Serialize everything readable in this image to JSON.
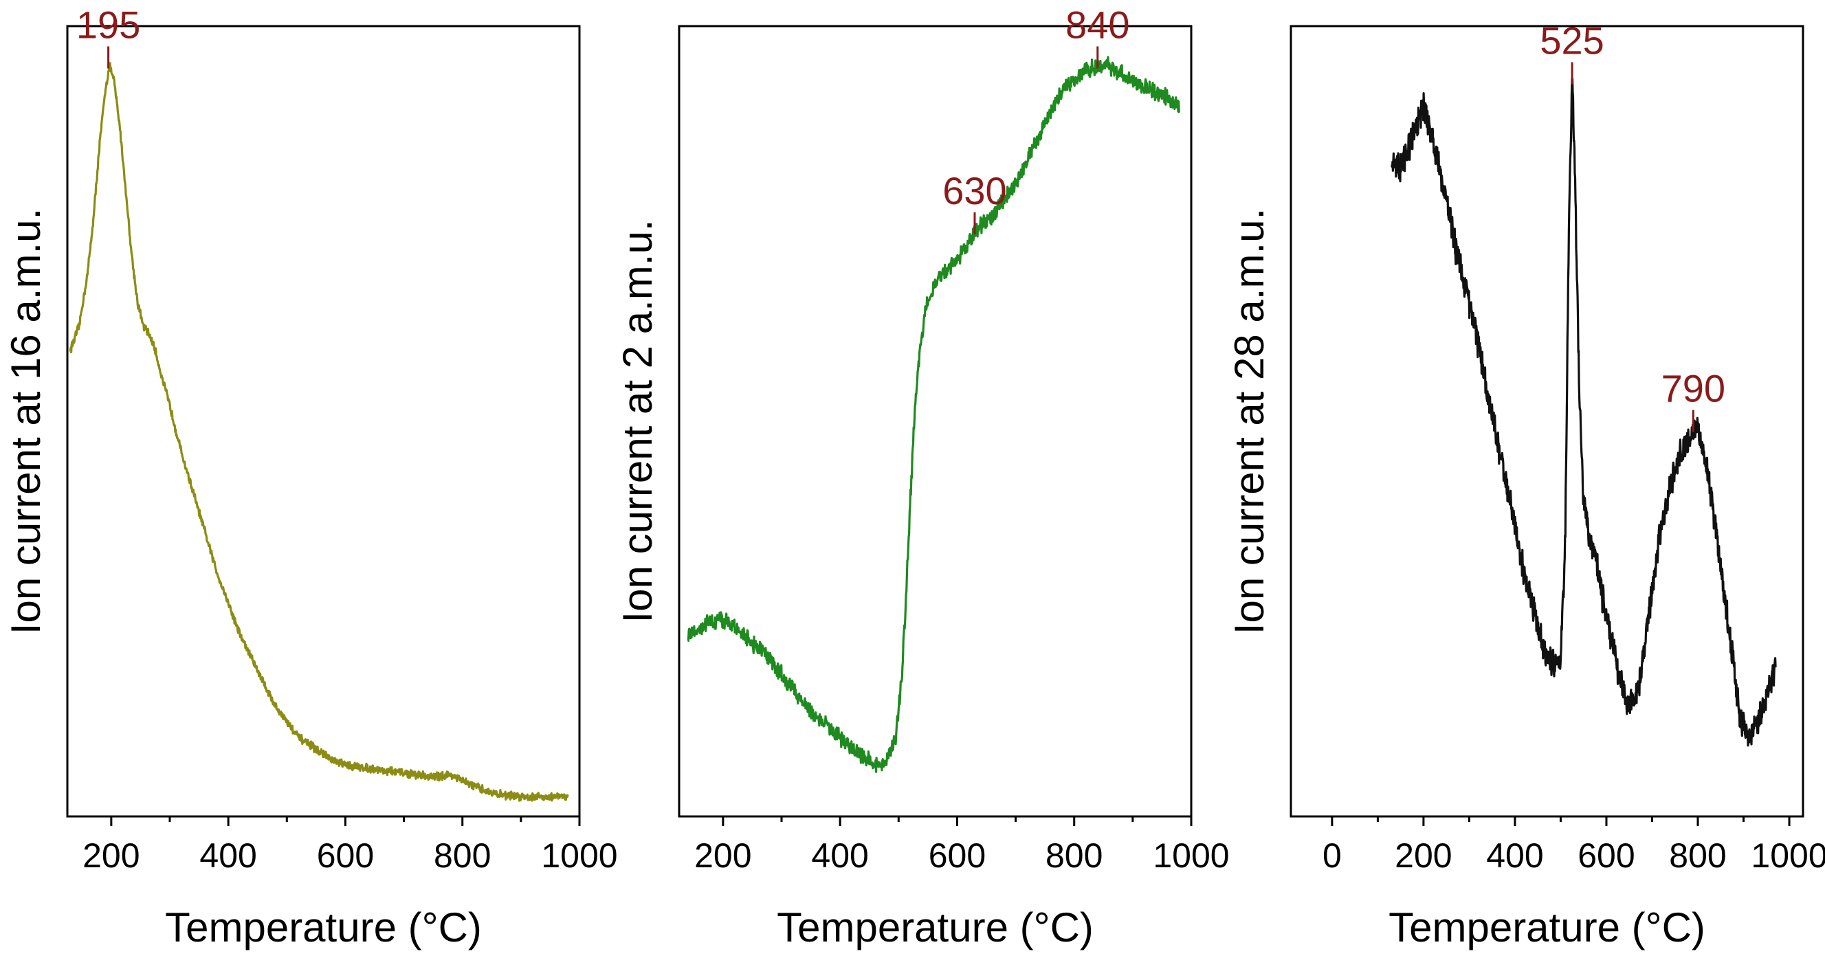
{
  "figure": {
    "panel_count": 3
  },
  "chart_data": [
    {
      "type": "line",
      "title": "",
      "xlabel": "Temperature (°C)",
      "ylabel": "Ion current at 16 a.m.u.",
      "xlim": [
        125,
        1000
      ],
      "ylim": [
        0,
        1
      ],
      "xticks": [
        200,
        400,
        600,
        800,
        1000
      ],
      "yticks_labeled": false,
      "series": [
        {
          "name": "16 a.m.u.",
          "color": "#8c8c14",
          "noise": 0.004,
          "x": [
            130,
            145,
            160,
            170,
            180,
            190,
            197,
            205,
            215,
            225,
            235,
            245,
            255,
            265,
            275,
            285,
            300,
            320,
            340,
            360,
            380,
            400,
            420,
            440,
            460,
            480,
            500,
            520,
            540,
            560,
            580,
            600,
            650,
            700,
            750,
            780,
            800,
            830,
            860,
            900,
            940,
            980
          ],
          "y": [
            0.59,
            0.62,
            0.69,
            0.76,
            0.85,
            0.92,
            0.95,
            0.93,
            0.87,
            0.79,
            0.71,
            0.65,
            0.62,
            0.61,
            0.59,
            0.56,
            0.52,
            0.46,
            0.41,
            0.36,
            0.31,
            0.27,
            0.23,
            0.2,
            0.17,
            0.14,
            0.12,
            0.1,
            0.09,
            0.08,
            0.07,
            0.065,
            0.06,
            0.055,
            0.05,
            0.053,
            0.045,
            0.035,
            0.028,
            0.025,
            0.025,
            0.025
          ]
        }
      ],
      "annotations": [
        {
          "x": 195,
          "y": 0.95,
          "label": "195",
          "color": "#8b1a1a"
        }
      ]
    },
    {
      "type": "line",
      "title": "",
      "xlabel": "Temperature (°C)",
      "ylabel": "Ion current at 2 a.m.u.",
      "xlim": [
        125,
        1000
      ],
      "ylim": [
        0,
        1
      ],
      "xticks": [
        200,
        400,
        600,
        800,
        1000
      ],
      "yticks_labeled": false,
      "series": [
        {
          "name": "2 a.m.u.",
          "color": "#1f8a1f",
          "noise": 0.008,
          "x": [
            140,
            160,
            180,
            200,
            220,
            250,
            280,
            310,
            340,
            370,
            400,
            430,
            450,
            465,
            480,
            495,
            505,
            512,
            520,
            528,
            535,
            545,
            560,
            580,
            600,
            615,
            630,
            645,
            660,
            680,
            700,
            720,
            740,
            760,
            780,
            800,
            820,
            840,
            860,
            880,
            900,
            930,
            960,
            980
          ],
          "y": [
            0.23,
            0.24,
            0.245,
            0.25,
            0.24,
            0.22,
            0.2,
            0.17,
            0.14,
            0.12,
            0.1,
            0.08,
            0.07,
            0.065,
            0.07,
            0.1,
            0.17,
            0.27,
            0.4,
            0.52,
            0.58,
            0.64,
            0.67,
            0.69,
            0.705,
            0.72,
            0.74,
            0.75,
            0.76,
            0.78,
            0.8,
            0.83,
            0.86,
            0.89,
            0.92,
            0.93,
            0.945,
            0.95,
            0.95,
            0.94,
            0.93,
            0.92,
            0.91,
            0.9
          ]
        }
      ],
      "annotations": [
        {
          "x": 630,
          "y": 0.74,
          "label": "630",
          "color": "#8b1a1a"
        },
        {
          "x": 840,
          "y": 0.95,
          "label": "840",
          "color": "#8b1a1a"
        }
      ]
    },
    {
      "type": "line",
      "title": "",
      "xlabel": "Temperature (°C)",
      "ylabel": "Ion current at 28 a.m.u.",
      "xlim": [
        -90,
        1030
      ],
      "ylim": [
        0,
        1
      ],
      "xticks": [
        0,
        200,
        400,
        600,
        800,
        1000
      ],
      "yticks_labeled": false,
      "series": [
        {
          "name": "28 a.m.u.",
          "color": "#111111",
          "noise": 0.014,
          "x": [
            130,
            150,
            170,
            190,
            200,
            215,
            230,
            250,
            270,
            300,
            330,
            360,
            390,
            420,
            450,
            470,
            490,
            500,
            510,
            518,
            525,
            532,
            540,
            550,
            560,
            575,
            590,
            610,
            630,
            650,
            670,
            690,
            720,
            750,
            770,
            790,
            800,
            810,
            830,
            850,
            870,
            890,
            910,
            930,
            950,
            970
          ],
          "y": [
            0.83,
            0.82,
            0.85,
            0.88,
            0.9,
            0.87,
            0.83,
            0.78,
            0.72,
            0.65,
            0.57,
            0.48,
            0.4,
            0.31,
            0.24,
            0.2,
            0.19,
            0.2,
            0.35,
            0.75,
            0.93,
            0.8,
            0.55,
            0.4,
            0.36,
            0.33,
            0.28,
            0.23,
            0.17,
            0.14,
            0.16,
            0.24,
            0.37,
            0.44,
            0.47,
            0.49,
            0.49,
            0.47,
            0.4,
            0.32,
            0.23,
            0.13,
            0.1,
            0.12,
            0.15,
            0.19
          ]
        }
      ],
      "annotations": [
        {
          "x": 525,
          "y": 0.93,
          "label": "525",
          "color": "#8b1a1a"
        },
        {
          "x": 790,
          "y": 0.49,
          "label": "790",
          "color": "#8b1a1a"
        }
      ]
    }
  ]
}
